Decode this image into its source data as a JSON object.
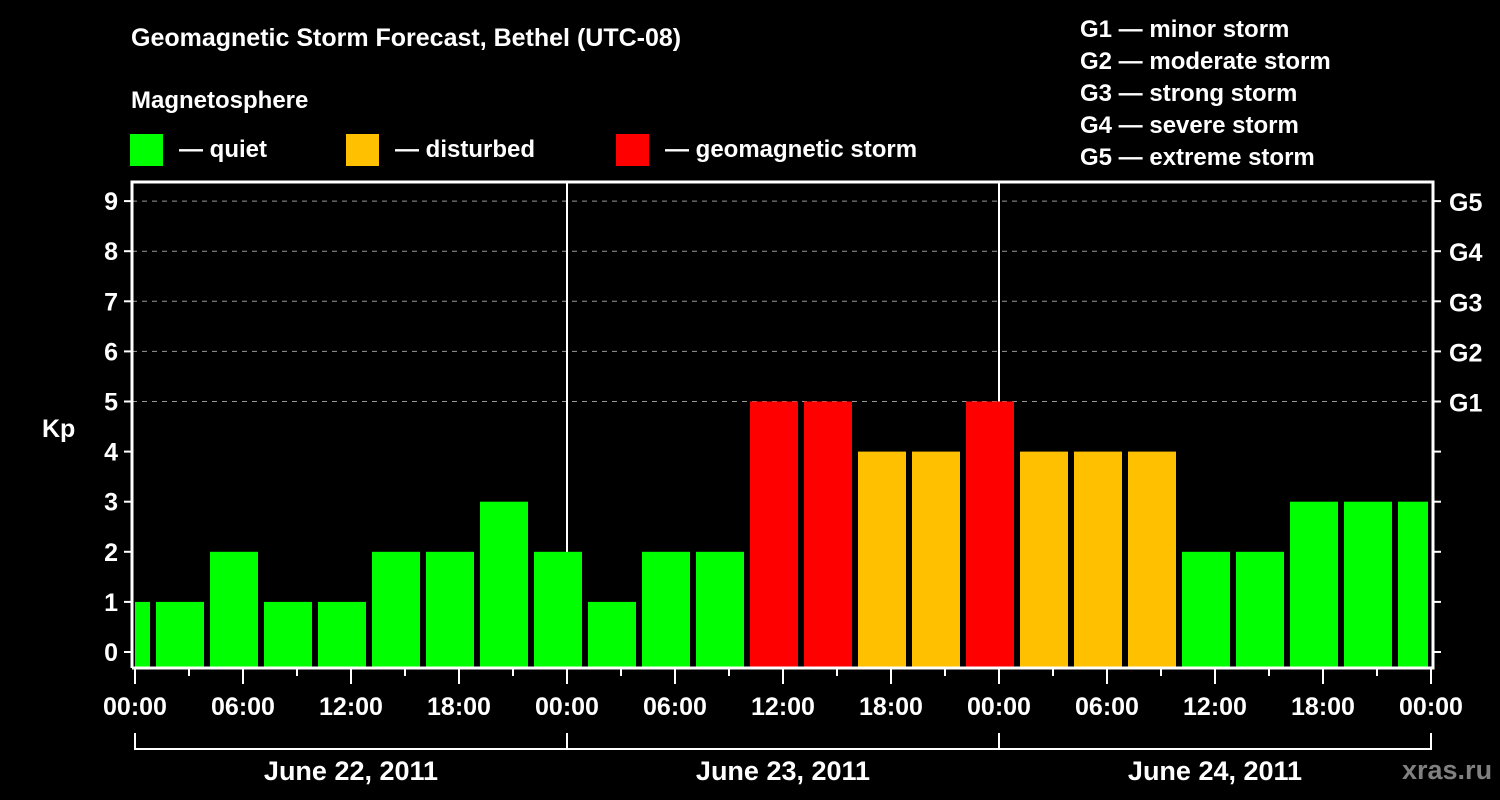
{
  "chart_data": {
    "type": "bar",
    "title": "Geomagnetic Storm Forecast, Bethel (UTC-08)",
    "subtitle": "Magnetosphere",
    "xlabel": "",
    "ylabel": "Kp",
    "ylim": [
      0,
      9
    ],
    "yticks": [
      0,
      1,
      2,
      3,
      4,
      5,
      6,
      7,
      8,
      9
    ],
    "right_axis_labels": [
      {
        "kp": 5,
        "label": "G1"
      },
      {
        "kp": 6,
        "label": "G2"
      },
      {
        "kp": 7,
        "label": "G3"
      },
      {
        "kp": 8,
        "label": "G4"
      },
      {
        "kp": 9,
        "label": "G5"
      }
    ],
    "grid": "dashed horizontal lines at Kp 5-9",
    "xtick_labels": [
      "00:00",
      "06:00",
      "12:00",
      "18:00",
      "00:00",
      "06:00",
      "12:00",
      "18:00",
      "00:00",
      "06:00",
      "12:00",
      "18:00",
      "00:00"
    ],
    "dates": [
      "June 22, 2011",
      "June 23, 2011",
      "June 24, 2011"
    ],
    "bin_hours": 3,
    "bins_start_offset_hours": 1,
    "values": [
      1,
      1,
      2,
      1,
      1,
      2,
      2,
      3,
      2,
      1,
      2,
      2,
      5,
      5,
      4,
      4,
      5,
      4,
      4,
      4,
      2,
      2,
      3,
      3,
      3
    ],
    "categories_note": "3-hour Kp intervals, first bin partially visible (ends ~01:00 June 22), last bin partially visible (starts ~22:00 June 24)",
    "levels": [
      {
        "name": "quiet",
        "kp_max": 3,
        "color": "#00FF00"
      },
      {
        "name": "disturbed",
        "kp_max": 4,
        "color": "#FFC000"
      },
      {
        "name": "geomagnetic storm",
        "kp_min": 5,
        "color": "#FF0000"
      }
    ]
  },
  "header": {
    "title": "Geomagnetic Storm Forecast, Bethel (UTC-08)",
    "subtitle": "Magnetosphere"
  },
  "legend": [
    {
      "label": "— quiet",
      "color": "#00FF00"
    },
    {
      "label": "— disturbed",
      "color": "#FFC000"
    },
    {
      "label": "— geomagnetic storm",
      "color": "#FF0000"
    }
  ],
  "g_scale": [
    "G1 — minor storm",
    "G2 — moderate storm",
    "G3 — strong storm",
    "G4 — severe storm",
    "G5 — extreme storm"
  ],
  "watermark": "xras.ru"
}
